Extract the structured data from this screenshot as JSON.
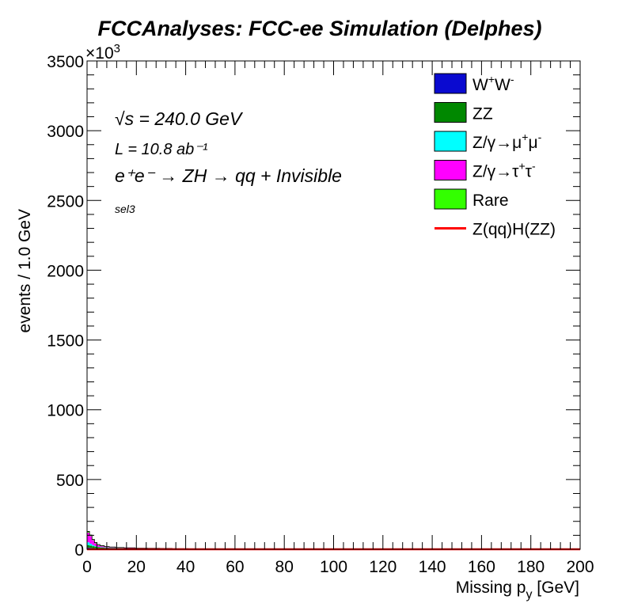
{
  "chart_data": {
    "type": "histogram",
    "title": "FCCAnalyses: FCC-ee Simulation (Delphes)",
    "xlabel": "Missing p_y [GeV]",
    "xlabel_main": "Missing p",
    "xlabel_sub": "y",
    "xlabel_unit": " [GeV]",
    "ylabel": "events / 1.0 GeV",
    "y_multiplier": "×10³",
    "y_multiplier_base": "×10",
    "y_multiplier_exp": "3",
    "xlim": [
      0,
      200
    ],
    "ylim": [
      0,
      3500
    ],
    "x_ticks": [
      "0",
      "20",
      "40",
      "60",
      "80",
      "100",
      "120",
      "140",
      "160",
      "180",
      "200"
    ],
    "y_ticks": [
      "0",
      "500",
      "1000",
      "1500",
      "2000",
      "2500",
      "3000",
      "3500"
    ],
    "annotations": {
      "energy": "√s = 240.0 GeV",
      "lumi": "L = 10.8 ab⁻¹",
      "process": "e⁺e⁻ → ZH → qq + Invisible",
      "selection": "sel3"
    },
    "legend_position": "top-right",
    "stacked": true,
    "bin_centers": [
      0.5,
      1.5,
      2.5,
      3.5,
      4.5,
      6,
      8,
      10,
      13,
      17,
      22,
      27,
      32,
      37,
      45,
      55,
      65,
      75
    ],
    "series": [
      {
        "name": "W⁺W⁻",
        "color": "#0a0ad0",
        "values": [
          12,
          10,
          8,
          7,
          6,
          5,
          4,
          4,
          3,
          3,
          2,
          2,
          2,
          1,
          1,
          1,
          0.5,
          0.2
        ]
      },
      {
        "name": "ZZ",
        "color": "#008800",
        "values": [
          18,
          16,
          14,
          12,
          10,
          9,
          8,
          7,
          6,
          5,
          4,
          3.5,
          3,
          2.5,
          2,
          1.5,
          1,
          0.3
        ]
      },
      {
        "name": "Z/γ→μ⁺μ⁻",
        "color": "#00ffff",
        "values": [
          20,
          14,
          8,
          4,
          2,
          1,
          0.5,
          0.3,
          0.2,
          0.1,
          0.05,
          0,
          0,
          0,
          0,
          0,
          0,
          0
        ]
      },
      {
        "name": "Z/γ→τ⁺τ⁻",
        "color": "#ff00ff",
        "values": [
          70,
          55,
          35,
          20,
          12,
          7,
          4,
          2,
          1,
          0.5,
          0.2,
          0.1,
          0,
          0,
          0,
          0,
          0,
          0
        ]
      },
      {
        "name": "Rare",
        "color": "#33ff00",
        "values": [
          8,
          7,
          6,
          5,
          4,
          4,
          3.5,
          3,
          2.5,
          2,
          1.5,
          1.2,
          1,
          0.8,
          0.6,
          0.4,
          0.2,
          0.1
        ]
      }
    ],
    "signal": {
      "name": "Z(qq)H(ZZ)",
      "color": "#ff0000",
      "values": [
        0.2,
        0.2,
        0.2,
        0.2,
        0.2,
        0.2,
        0.2,
        0.2,
        0.2,
        0.2,
        0.2,
        0.2,
        0.2,
        0.2,
        0.2,
        0.2,
        0.1,
        0.05
      ]
    },
    "legend": [
      {
        "label": "W⁺W⁻",
        "main": "W",
        "sup1": "+",
        "mid": "W",
        "sup2": "-",
        "type": "fill",
        "color": "#0a0ad0"
      },
      {
        "label": "ZZ",
        "main": "ZZ",
        "type": "fill",
        "color": "#008800"
      },
      {
        "label": "Z/γ→μ⁺μ⁻",
        "main": "Z/γ→μ",
        "sup1": "+",
        "mid": "μ",
        "sup2": "-",
        "type": "fill",
        "color": "#00ffff"
      },
      {
        "label": "Z/γ→τ⁺τ⁻",
        "main": "Z/γ→τ",
        "sup1": "+",
        "mid": "τ",
        "sup2": "-",
        "type": "fill",
        "color": "#ff00ff"
      },
      {
        "label": "Rare",
        "main": "Rare",
        "type": "fill",
        "color": "#33ff00"
      },
      {
        "label": "Z(qq)H(ZZ)",
        "main": "Z(qq)H(ZZ)",
        "type": "line",
        "color": "#ff0000"
      }
    ]
  }
}
